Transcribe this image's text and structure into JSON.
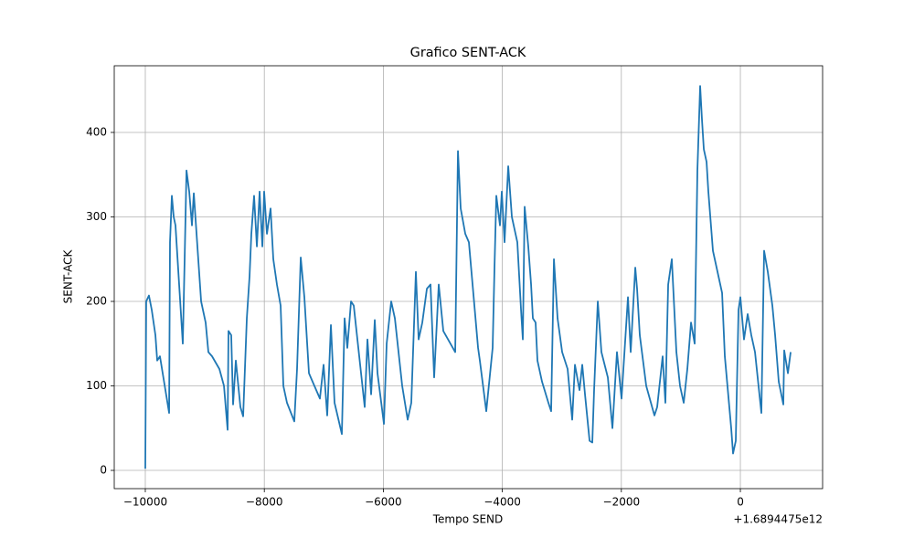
{
  "chart_data": {
    "type": "line",
    "title": "Grafico SENT-ACK",
    "x_label": "Tempo SEND",
    "y_label": "SENT-ACK",
    "x_offset_label": "+1.6894475e12",
    "color": "#1f77b4",
    "grid": true,
    "xlim": [
      -10522,
      1382
    ],
    "ylim": [
      -21.6,
      478.9
    ],
    "xticks": [
      {
        "value": -10000,
        "label": "−10000"
      },
      {
        "value": -8000,
        "label": "−8000"
      },
      {
        "value": -6000,
        "label": "−6000"
      },
      {
        "value": -4000,
        "label": "−4000"
      },
      {
        "value": -2000,
        "label": "−2000"
      },
      0
    ],
    "yticks": [
      0,
      100,
      200,
      300,
      400
    ],
    "x": [
      -10000,
      -9985,
      -9939,
      -9892,
      -9830,
      -9800,
      -9754,
      -9600,
      -9585,
      -9554,
      -9523,
      -9493,
      -9370,
      -9339,
      -9308,
      -9262,
      -9216,
      -9185,
      -9139,
      -9062,
      -8986,
      -8940,
      -8878,
      -8755,
      -8678,
      -8617,
      -8602,
      -8556,
      -8525,
      -8479,
      -8402,
      -8356,
      -8294,
      -8248,
      -8218,
      -8172,
      -8125,
      -8079,
      -8033,
      -8003,
      -7956,
      -7895,
      -7849,
      -7788,
      -7726,
      -7680,
      -7619,
      -7496,
      -7450,
      -7388,
      -7327,
      -7250,
      -7189,
      -7066,
      -7004,
      -6943,
      -6881,
      -6820,
      -6697,
      -6651,
      -6605,
      -6543,
      -6497,
      -6313,
      -6267,
      -6205,
      -6144,
      -6098,
      -5990,
      -5944,
      -5868,
      -5806,
      -5683,
      -5591,
      -5530,
      -5453,
      -5407,
      -5345,
      -5268,
      -5207,
      -5146,
      -5069,
      -4992,
      -4792,
      -4746,
      -4700,
      -4623,
      -4562,
      -4408,
      -4378,
      -4270,
      -4163,
      -4132,
      -4101,
      -4040,
      -4009,
      -3963,
      -3901,
      -3840,
      -3748,
      -3686,
      -3656,
      -3625,
      -3564,
      -3517,
      -3487,
      -3441,
      -3410,
      -3333,
      -3226,
      -3180,
      -3133,
      -3072,
      -2995,
      -2903,
      -2826,
      -2780,
      -2703,
      -2657,
      -2611,
      -2534,
      -2488,
      -2458,
      -2396,
      -2335,
      -2227,
      -2150,
      -2074,
      -1997,
      -1889,
      -1843,
      -1766,
      -1736,
      -1690,
      -1582,
      -1444,
      -1398,
      -1306,
      -1260,
      -1213,
      -1152,
      -1075,
      -1014,
      -952,
      -891,
      -829,
      -768,
      -722,
      -676,
      -645,
      -614,
      -568,
      -538,
      -461,
      -307,
      -261,
      -154,
      -123,
      -77,
      -31,
      0,
      61,
      123,
      184,
      246,
      353,
      399,
      461,
      538,
      584,
      645,
      722,
      737,
      799,
      845
    ],
    "values": [
      2,
      200,
      207,
      190,
      160,
      130,
      135,
      68,
      270,
      325,
      300,
      290,
      150,
      250,
      355,
      330,
      290,
      328,
      280,
      200,
      175,
      140,
      135,
      120,
      100,
      48,
      165,
      160,
      78,
      130,
      75,
      64,
      180,
      230,
      280,
      325,
      265,
      330,
      265,
      330,
      280,
      310,
      250,
      220,
      195,
      100,
      80,
      58,
      120,
      252,
      205,
      115,
      105,
      85,
      125,
      65,
      172,
      80,
      43,
      180,
      145,
      200,
      195,
      75,
      155,
      90,
      178,
      115,
      55,
      150,
      200,
      180,
      100,
      60,
      80,
      235,
      155,
      175,
      215,
      220,
      110,
      220,
      165,
      140,
      378,
      310,
      280,
      270,
      145,
      130,
      70,
      145,
      240,
      325,
      290,
      330,
      270,
      360,
      300,
      270,
      190,
      155,
      312,
      265,
      220,
      180,
      175,
      130,
      105,
      80,
      70,
      250,
      180,
      140,
      120,
      60,
      125,
      95,
      125,
      90,
      35,
      33,
      95,
      200,
      140,
      110,
      50,
      140,
      85,
      205,
      140,
      240,
      215,
      160,
      100,
      65,
      75,
      135,
      80,
      220,
      250,
      140,
      100,
      80,
      120,
      175,
      150,
      355,
      455,
      415,
      380,
      365,
      330,
      260,
      210,
      135,
      50,
      20,
      35,
      190,
      205,
      155,
      185,
      160,
      140,
      68,
      260,
      235,
      195,
      160,
      105,
      78,
      142,
      115,
      140
    ]
  }
}
